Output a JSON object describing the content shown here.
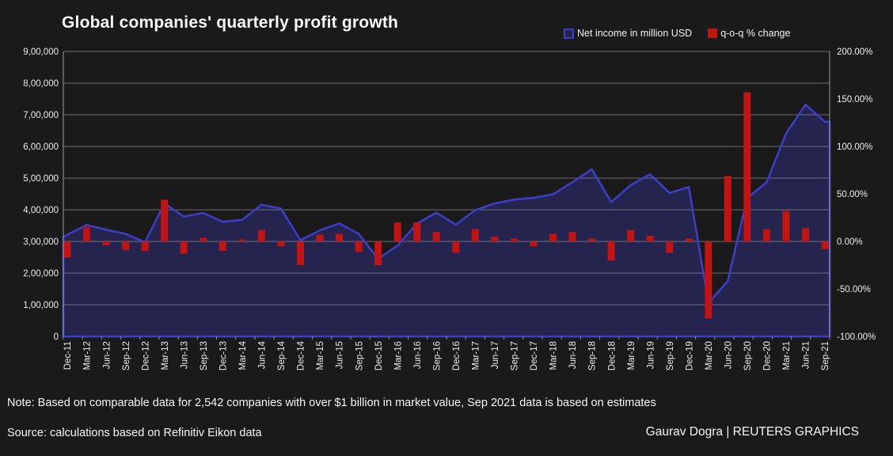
{
  "title": "Global companies' quarterly profit growth",
  "legend": [
    {
      "label": "Net income in million USD",
      "color": "#3d3dc6",
      "fill": "#24244e"
    },
    {
      "label": "q-o-q % change",
      "color": "#c31414"
    }
  ],
  "note": "Note: Based on comparable data for 2,542 companies with over $1 billion in market value, Sep 2021 data is based on estimates",
  "source": "Source: calculations based on Refinitiv Eikon data",
  "credit": "Gaurav Dogra | REUTERS GRAPHICS",
  "chart_data": {
    "type": "combo-area-bar",
    "title": "Global companies' quarterly profit growth",
    "categories": [
      "Dec-11",
      "Mar-12",
      "Jun-12",
      "Sep-12",
      "Dec-12",
      "Mar-13",
      "Jun-13",
      "Sep-13",
      "Dec-13",
      "Mar-14",
      "Jun-14",
      "Sep-14",
      "Dec-14",
      "Mar-15",
      "Jun-15",
      "Sep-15",
      "Dec-15",
      "Mar-16",
      "Jun-16",
      "Sep-16",
      "Dec-16",
      "Mar-17",
      "Jun-17",
      "Sep-17",
      "Dec-17",
      "Mar-18",
      "Jun-18",
      "Sep-18",
      "Dec-18",
      "Mar-19",
      "Jun-19",
      "Sep-19",
      "Dec-19",
      "Mar-20",
      "Jun-20",
      "Sep-20",
      "Dec-20",
      "Mar-21",
      "Jun-21",
      "Sep-21"
    ],
    "series": [
      {
        "name": "Net income in million USD",
        "type": "area",
        "axis": "left",
        "line_color": "#3d3dc6",
        "fill_color": "#24244e",
        "values": [
          315000,
          352000,
          337000,
          324000,
          298000,
          420000,
          379000,
          390000,
          362000,
          368000,
          416000,
          404000,
          304000,
          335000,
          357000,
          324000,
          245000,
          287000,
          357000,
          391000,
          353000,
          399000,
          420000,
          432000,
          438000,
          449000,
          487000,
          528000,
          424000,
          478000,
          512000,
          453000,
          472000,
          105000,
          175000,
          437000,
          487000,
          641000,
          732000,
          678000
        ]
      },
      {
        "name": "q-o-q % change",
        "type": "bar",
        "axis": "right",
        "color": "#c31414",
        "values": [
          -17,
          15,
          -4,
          -9,
          -10,
          44,
          -13,
          4,
          -10,
          2,
          12,
          -5,
          -25,
          7,
          8,
          -11,
          -25,
          20,
          20,
          10,
          -12,
          13,
          5,
          3,
          -5,
          8,
          10,
          3,
          -20,
          12,
          6,
          -12,
          3,
          -81,
          69,
          157,
          13,
          32,
          14,
          -8
        ]
      }
    ],
    "left_axis": {
      "range": [
        0,
        900000
      ],
      "tick_labels": [
        "9,00,000",
        "8,00,000",
        "7,00,000",
        "6,00,000",
        "5,00,000",
        "4,00,000",
        "3,00,000",
        "2,00,000",
        "1,00,000",
        "0"
      ]
    },
    "right_axis": {
      "range": [
        -100,
        200
      ],
      "tick_labels": [
        "200.00%",
        "150.00%",
        "100.00%",
        "50.00%",
        "0.00%",
        "-50.00%",
        "-100.00%"
      ]
    },
    "grid": true,
    "legend_position": "top-right"
  }
}
